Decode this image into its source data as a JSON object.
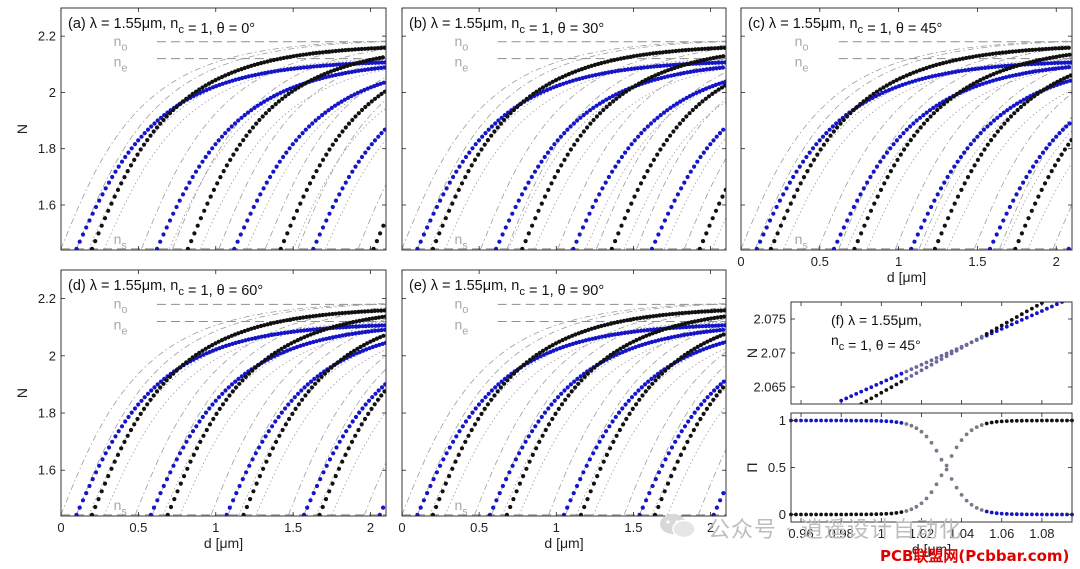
{
  "colors": {
    "blue": "#1414c8",
    "black": "#111111",
    "gray": "#9a9a9a",
    "fringe": "#b0b0b0"
  },
  "watermark": {
    "wechat": "公众号 · 逍遥设计自动化",
    "site": "PCB联盟网(Pcbbar.com)",
    "logo_icon": "wechat-icon"
  },
  "chart_data": [
    {
      "id": "a",
      "type": "scatter",
      "title": "(a)  λ = 1.55μm,  n c = 1,  θ = 0°",
      "xlabel": "",
      "ylabel": "N",
      "xlim": [
        0,
        2.1
      ],
      "ylim": [
        1.44,
        2.3
      ],
      "xticks": [],
      "yticks": [
        "1.6",
        "1.8",
        "2",
        "2.2"
      ],
      "reference_lines": {
        "no": 2.18,
        "ne": 2.12,
        "ns": 1.444
      },
      "reference_labels": [
        "n o",
        "n e",
        "n s"
      ],
      "series": [
        {
          "color": "blue",
          "mode_cutoffs_um": [
            0.1,
            0.62,
            1.12,
            1.63
          ]
        },
        {
          "color": "black",
          "mode_cutoffs_um": [
            0.2,
            0.82,
            1.42,
            2.02
          ]
        }
      ]
    },
    {
      "id": "b",
      "type": "scatter",
      "title": "(b)  λ = 1.55μm,  n c = 1,  θ = 30°",
      "xlabel": "",
      "ylabel": "",
      "xlim": [
        0,
        2.1
      ],
      "ylim": [
        1.44,
        2.3
      ],
      "xticks": [],
      "yticks": [],
      "reference_lines": {
        "no": 2.18,
        "ne": 2.12,
        "ns": 1.444
      },
      "reference_labels": [
        "n o",
        "n e",
        "n s"
      ],
      "series": [
        {
          "color": "blue",
          "mode_cutoffs_um": [
            0.1,
            0.61,
            1.11,
            1.62
          ]
        },
        {
          "color": "black",
          "mode_cutoffs_um": [
            0.2,
            0.78,
            1.36,
            1.93
          ]
        }
      ]
    },
    {
      "id": "c",
      "type": "scatter",
      "title": "(c)  λ = 1.55μm,  n c = 1,  θ = 45°",
      "xlabel": "d [μm]",
      "ylabel": "",
      "xlim": [
        0,
        2.1
      ],
      "ylim": [
        1.44,
        2.3
      ],
      "xticks": [
        "0",
        "0.5",
        "1",
        "1.5",
        "2"
      ],
      "yticks": [],
      "reference_lines": {
        "no": 2.18,
        "ne": 2.12,
        "ns": 1.444
      },
      "reference_labels": [
        "n o",
        "n e",
        "n s"
      ],
      "series": [
        {
          "color": "blue",
          "mode_cutoffs_um": [
            0.1,
            0.59,
            1.08,
            1.58,
            2.08
          ]
        },
        {
          "color": "black",
          "mode_cutoffs_um": [
            0.19,
            0.72,
            1.23,
            1.74
          ]
        }
      ]
    },
    {
      "id": "d",
      "type": "scatter",
      "title": "(d)  λ = 1.55μm,  n c = 1,  θ = 60°",
      "xlabel": "d [μm]",
      "ylabel": "N",
      "xlim": [
        0,
        2.1
      ],
      "ylim": [
        1.44,
        2.3
      ],
      "xticks": [
        "0",
        "0.5",
        "1",
        "1.5",
        "2"
      ],
      "yticks": [
        "1.6",
        "1.8",
        "2",
        "2.2"
      ],
      "reference_lines": {
        "no": 2.18,
        "ne": 2.12,
        "ns": 1.444
      },
      "reference_labels": [
        "n o",
        "n e",
        "n s"
      ],
      "series": [
        {
          "color": "blue",
          "mode_cutoffs_um": [
            0.1,
            0.58,
            1.07,
            1.57,
            2.06
          ]
        },
        {
          "color": "black",
          "mode_cutoffs_um": [
            0.2,
            0.69,
            1.18,
            1.67
          ]
        }
      ]
    },
    {
      "id": "e",
      "type": "scatter",
      "title": "(e)  λ = 1.55μm,  n c = 1,  θ = 90°",
      "xlabel": "d [μm]",
      "ylabel": "",
      "xlim": [
        0,
        2.1
      ],
      "ylim": [
        1.44,
        2.3
      ],
      "xticks": [
        "0",
        "0.5",
        "1",
        "1.5",
        "2"
      ],
      "yticks": [],
      "reference_lines": {
        "no": 2.18,
        "ne": 2.12,
        "ns": 1.444
      },
      "reference_labels": [
        "n o",
        "n e",
        "n s"
      ],
      "series": [
        {
          "color": "blue",
          "mode_cutoffs_um": [
            0.1,
            0.57,
            1.05,
            1.54,
            2.02
          ]
        },
        {
          "color": "black",
          "mode_cutoffs_um": [
            0.2,
            0.68,
            1.16,
            1.64
          ]
        }
      ]
    },
    {
      "id": "f-top",
      "type": "scatter",
      "title": "(f)  λ = 1.55μm,\nn c = 1,  θ = 45°",
      "xlabel": "",
      "ylabel": "N",
      "xlim": [
        0.955,
        1.095
      ],
      "ylim": [
        2.0625,
        2.0775
      ],
      "xticks": [],
      "yticks": [
        "2.065",
        "2.07",
        "2.075"
      ],
      "series": [
        {
          "color": "blue",
          "x_range": [
            0.98,
            1.09
          ],
          "y_range": [
            2.063,
            2.0775
          ]
        },
        {
          "color": "black",
          "x_range": [
            0.99,
            1.09
          ],
          "y_range": [
            2.0625,
            2.079
          ]
        }
      ]
    },
    {
      "id": "f-bottom",
      "type": "scatter",
      "xlabel": "d [μm]",
      "ylabel": "Π",
      "xlim": [
        0.955,
        1.095
      ],
      "ylim": [
        -0.08,
        1.08
      ],
      "xticks": [
        "0.96",
        "0.98",
        "1",
        "1.02",
        "1.04",
        "1.06",
        "1.08"
      ],
      "yticks": [
        "0",
        "0.5",
        "1"
      ],
      "crossing_um": 1.032,
      "series": [
        {
          "color": "blue",
          "values_far_from_crossing": [
            1,
            0
          ]
        },
        {
          "color": "black",
          "values_far_from_crossing": [
            0,
            1
          ]
        }
      ]
    }
  ]
}
